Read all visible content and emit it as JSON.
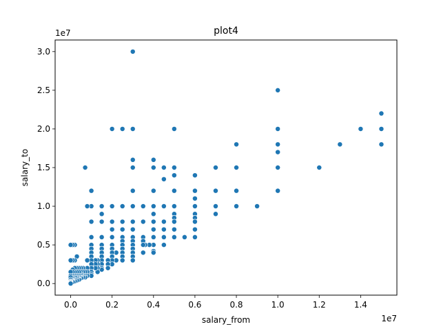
{
  "chart_data": {
    "type": "scatter",
    "title": "plot4",
    "xlabel": "salary_from",
    "ylabel": "salary_to",
    "x_offset_label": "1e7",
    "y_offset_label": "1e7",
    "xlim": [
      -750000,
      15750000
    ],
    "ylim": [
      -1500000,
      31500000
    ],
    "x_ticks": [
      {
        "value": 0,
        "label": "0.0"
      },
      {
        "value": 2000000,
        "label": "0.2"
      },
      {
        "value": 4000000,
        "label": "0.4"
      },
      {
        "value": 6000000,
        "label": "0.6"
      },
      {
        "value": 8000000,
        "label": "0.8"
      },
      {
        "value": 10000000,
        "label": "1.0"
      },
      {
        "value": 12000000,
        "label": "1.2"
      },
      {
        "value": 14000000,
        "label": "1.4"
      }
    ],
    "y_ticks": [
      {
        "value": 0,
        "label": "0.0"
      },
      {
        "value": 5000000,
        "label": "0.5"
      },
      {
        "value": 10000000,
        "label": "1.0"
      },
      {
        "value": 15000000,
        "label": "1.5"
      },
      {
        "value": 20000000,
        "label": "2.0"
      },
      {
        "value": 25000000,
        "label": "2.5"
      },
      {
        "value": 30000000,
        "label": "3.0"
      }
    ],
    "grid": false,
    "marker_color": "#1f77b4",
    "points": [
      [
        3000000,
        30000000
      ],
      [
        10000000,
        25000000
      ],
      [
        15000000,
        22000000
      ],
      [
        15000000,
        20000000
      ],
      [
        15000000,
        18000000
      ],
      [
        14000000,
        20000000
      ],
      [
        13000000,
        18000000
      ],
      [
        12000000,
        15000000
      ],
      [
        10000000,
        20000000
      ],
      [
        10000000,
        18000000
      ],
      [
        10000000,
        17000000
      ],
      [
        10000000,
        15000000
      ],
      [
        10000000,
        12000000
      ],
      [
        9000000,
        10000000
      ],
      [
        8000000,
        18000000
      ],
      [
        8000000,
        15000000
      ],
      [
        8000000,
        12000000
      ],
      [
        8000000,
        10000000
      ],
      [
        7000000,
        15000000
      ],
      [
        7000000,
        12000000
      ],
      [
        7000000,
        10000000
      ],
      [
        7000000,
        9000000
      ],
      [
        6000000,
        14000000
      ],
      [
        6000000,
        12000000
      ],
      [
        6000000,
        11000000
      ],
      [
        6000000,
        10000000
      ],
      [
        6000000,
        9000000
      ],
      [
        6000000,
        8500000
      ],
      [
        6000000,
        8000000
      ],
      [
        6000000,
        7000000
      ],
      [
        6000000,
        6000000
      ],
      [
        5500000,
        6000000
      ],
      [
        5000000,
        20000000
      ],
      [
        5000000,
        15000000
      ],
      [
        5000000,
        14000000
      ],
      [
        5000000,
        12000000
      ],
      [
        5000000,
        10000000
      ],
      [
        5000000,
        9000000
      ],
      [
        5000000,
        8500000
      ],
      [
        5000000,
        8000000
      ],
      [
        5000000,
        7000000
      ],
      [
        5000000,
        6000000
      ],
      [
        4500000,
        15000000
      ],
      [
        4500000,
        13500000
      ],
      [
        4500000,
        10000000
      ],
      [
        4500000,
        8000000
      ],
      [
        4500000,
        7000000
      ],
      [
        4500000,
        6000000
      ],
      [
        4500000,
        5000000
      ],
      [
        4000000,
        16000000
      ],
      [
        4000000,
        15000000
      ],
      [
        4000000,
        12000000
      ],
      [
        4000000,
        10000000
      ],
      [
        4000000,
        9000000
      ],
      [
        4000000,
        8000000
      ],
      [
        4000000,
        7000000
      ],
      [
        4000000,
        6000000
      ],
      [
        4000000,
        5000000
      ],
      [
        4000000,
        4200000
      ],
      [
        4000000,
        4000000
      ],
      [
        3800000,
        5000000
      ],
      [
        3600000,
        5000000
      ],
      [
        3500000,
        10000000
      ],
      [
        3500000,
        8000000
      ],
      [
        3500000,
        6000000
      ],
      [
        3500000,
        5500000
      ],
      [
        3500000,
        5000000
      ],
      [
        3500000,
        4000000
      ],
      [
        3000000,
        20000000
      ],
      [
        3000000,
        16000000
      ],
      [
        3000000,
        15000000
      ],
      [
        3000000,
        12000000
      ],
      [
        3000000,
        10000000
      ],
      [
        3000000,
        8000000
      ],
      [
        3000000,
        7000000
      ],
      [
        3000000,
        6000000
      ],
      [
        3000000,
        5500000
      ],
      [
        3000000,
        5000000
      ],
      [
        3000000,
        4500000
      ],
      [
        3000000,
        4000000
      ],
      [
        3000000,
        3500000
      ],
      [
        3000000,
        3000000
      ],
      [
        2500000,
        20000000
      ],
      [
        2500000,
        10000000
      ],
      [
        2500000,
        8000000
      ],
      [
        2500000,
        7000000
      ],
      [
        2500000,
        6000000
      ],
      [
        2500000,
        5500000
      ],
      [
        2500000,
        5000000
      ],
      [
        2500000,
        4500000
      ],
      [
        2500000,
        4000000
      ],
      [
        2500000,
        3500000
      ],
      [
        2500000,
        3000000
      ],
      [
        2200000,
        4000000
      ],
      [
        2200000,
        3000000
      ],
      [
        2000000,
        20000000
      ],
      [
        2000000,
        10000000
      ],
      [
        2000000,
        8000000
      ],
      [
        2000000,
        7000000
      ],
      [
        2000000,
        6000000
      ],
      [
        2000000,
        5000000
      ],
      [
        2000000,
        4500000
      ],
      [
        2000000,
        4000000
      ],
      [
        2000000,
        3500000
      ],
      [
        2000000,
        3000000
      ],
      [
        2000000,
        2500000
      ],
      [
        1800000,
        3000000
      ],
      [
        1800000,
        2500000
      ],
      [
        1800000,
        2000000
      ],
      [
        1500000,
        10000000
      ],
      [
        1500000,
        9000000
      ],
      [
        1500000,
        8000000
      ],
      [
        1500000,
        6000000
      ],
      [
        1500000,
        5000000
      ],
      [
        1500000,
        4500000
      ],
      [
        1500000,
        4000000
      ],
      [
        1500000,
        3500000
      ],
      [
        1500000,
        3000000
      ],
      [
        1500000,
        2500000
      ],
      [
        1500000,
        2000000
      ],
      [
        1500000,
        1800000
      ],
      [
        1300000,
        3000000
      ],
      [
        1300000,
        2500000
      ],
      [
        1300000,
        2000000
      ],
      [
        1300000,
        1500000
      ],
      [
        1200000,
        3000000
      ],
      [
        1200000,
        2500000
      ],
      [
        1200000,
        2000000
      ],
      [
        1000000,
        12000000
      ],
      [
        1000000,
        10000000
      ],
      [
        1000000,
        8000000
      ],
      [
        1000000,
        6000000
      ],
      [
        1000000,
        5000000
      ],
      [
        1000000,
        4500000
      ],
      [
        1000000,
        4000000
      ],
      [
        1000000,
        3500000
      ],
      [
        1000000,
        3000000
      ],
      [
        1000000,
        2500000
      ],
      [
        1000000,
        2000000
      ],
      [
        1000000,
        1500000
      ],
      [
        1000000,
        1200000
      ],
      [
        1000000,
        1000000
      ],
      [
        800000,
        10000000
      ],
      [
        800000,
        3000000
      ],
      [
        800000,
        2000000
      ],
      [
        800000,
        1500000
      ],
      [
        800000,
        1000000
      ],
      [
        700000,
        15000000
      ],
      [
        700000,
        1500000
      ],
      [
        700000,
        1000000
      ],
      [
        700000,
        800000
      ],
      [
        600000,
        2000000
      ],
      [
        600000,
        1500000
      ],
      [
        600000,
        1000000
      ],
      [
        600000,
        800000
      ],
      [
        500000,
        2000000
      ],
      [
        500000,
        1500000
      ],
      [
        500000,
        1200000
      ],
      [
        500000,
        1000000
      ],
      [
        500000,
        800000
      ],
      [
        500000,
        700000
      ],
      [
        400000,
        2000000
      ],
      [
        400000,
        1500000
      ],
      [
        400000,
        1000000
      ],
      [
        400000,
        800000
      ],
      [
        400000,
        600000
      ],
      [
        400000,
        500000
      ],
      [
        300000,
        3500000
      ],
      [
        300000,
        2000000
      ],
      [
        300000,
        1500000
      ],
      [
        300000,
        1000000
      ],
      [
        300000,
        800000
      ],
      [
        300000,
        600000
      ],
      [
        300000,
        400000
      ],
      [
        200000,
        5000000
      ],
      [
        200000,
        3000000
      ],
      [
        200000,
        2000000
      ],
      [
        200000,
        1500000
      ],
      [
        200000,
        1000000
      ],
      [
        200000,
        800000
      ],
      [
        200000,
        500000
      ],
      [
        200000,
        300000
      ],
      [
        100000,
        5000000
      ],
      [
        100000,
        3000000
      ],
      [
        100000,
        1800000
      ],
      [
        100000,
        1500000
      ],
      [
        100000,
        1000000
      ],
      [
        100000,
        800000
      ],
      [
        100000,
        600000
      ],
      [
        100000,
        400000
      ],
      [
        100000,
        300000
      ],
      [
        100000,
        200000
      ],
      [
        0,
        5000000
      ],
      [
        0,
        3000000
      ],
      [
        0,
        1500000
      ],
      [
        0,
        1000000
      ],
      [
        0,
        800000
      ],
      [
        0,
        500000
      ],
      [
        0,
        300000
      ],
      [
        0,
        200000
      ],
      [
        0,
        100000
      ],
      [
        0,
        50000
      ],
      [
        0,
        0
      ]
    ]
  }
}
